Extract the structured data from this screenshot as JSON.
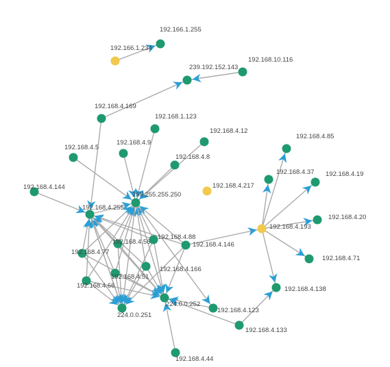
{
  "nodes": [
    {
      "label": "192.166.1.255"
    },
    {
      "label": "192.166.1.234"
    },
    {
      "label": "239.192.152.143"
    },
    {
      "label": "192.168.10.116"
    },
    {
      "label": "192.168.4.169"
    },
    {
      "label": "192.168.1.123"
    },
    {
      "label": "192.168.4.12"
    },
    {
      "label": "192.168.4.9"
    },
    {
      "label": "192.168.4.8"
    },
    {
      "label": "192.168.4.5"
    },
    {
      "label": "192.168.4.144"
    },
    {
      "label": "255.255.255.250"
    },
    {
      "label": "192.168.4.217"
    },
    {
      "label": "192.168.4.255"
    },
    {
      "label": "192.168.4.85"
    },
    {
      "label": "192.168.4.37"
    },
    {
      "label": "192.168.4.19"
    },
    {
      "label": "192.168.4.20"
    },
    {
      "label": "192.168.4.193"
    },
    {
      "label": "192.168.4.71"
    },
    {
      "label": "192.168.4.88"
    },
    {
      "label": "192.168.4.146"
    },
    {
      "label": "192.168.4.56"
    },
    {
      "label": "192.168.4.77"
    },
    {
      "label": "192.168.4.166"
    },
    {
      "label": "192.168.4.51"
    },
    {
      "label": "192.168.4.66"
    },
    {
      "label": "192.168.4.138"
    },
    {
      "label": "224.0.0.252"
    },
    {
      "label": "224.0.0.251"
    },
    {
      "label": "192.168.4.123"
    },
    {
      "label": "192.168.4.133"
    },
    {
      "label": "192.168.4.44"
    }
  ]
}
